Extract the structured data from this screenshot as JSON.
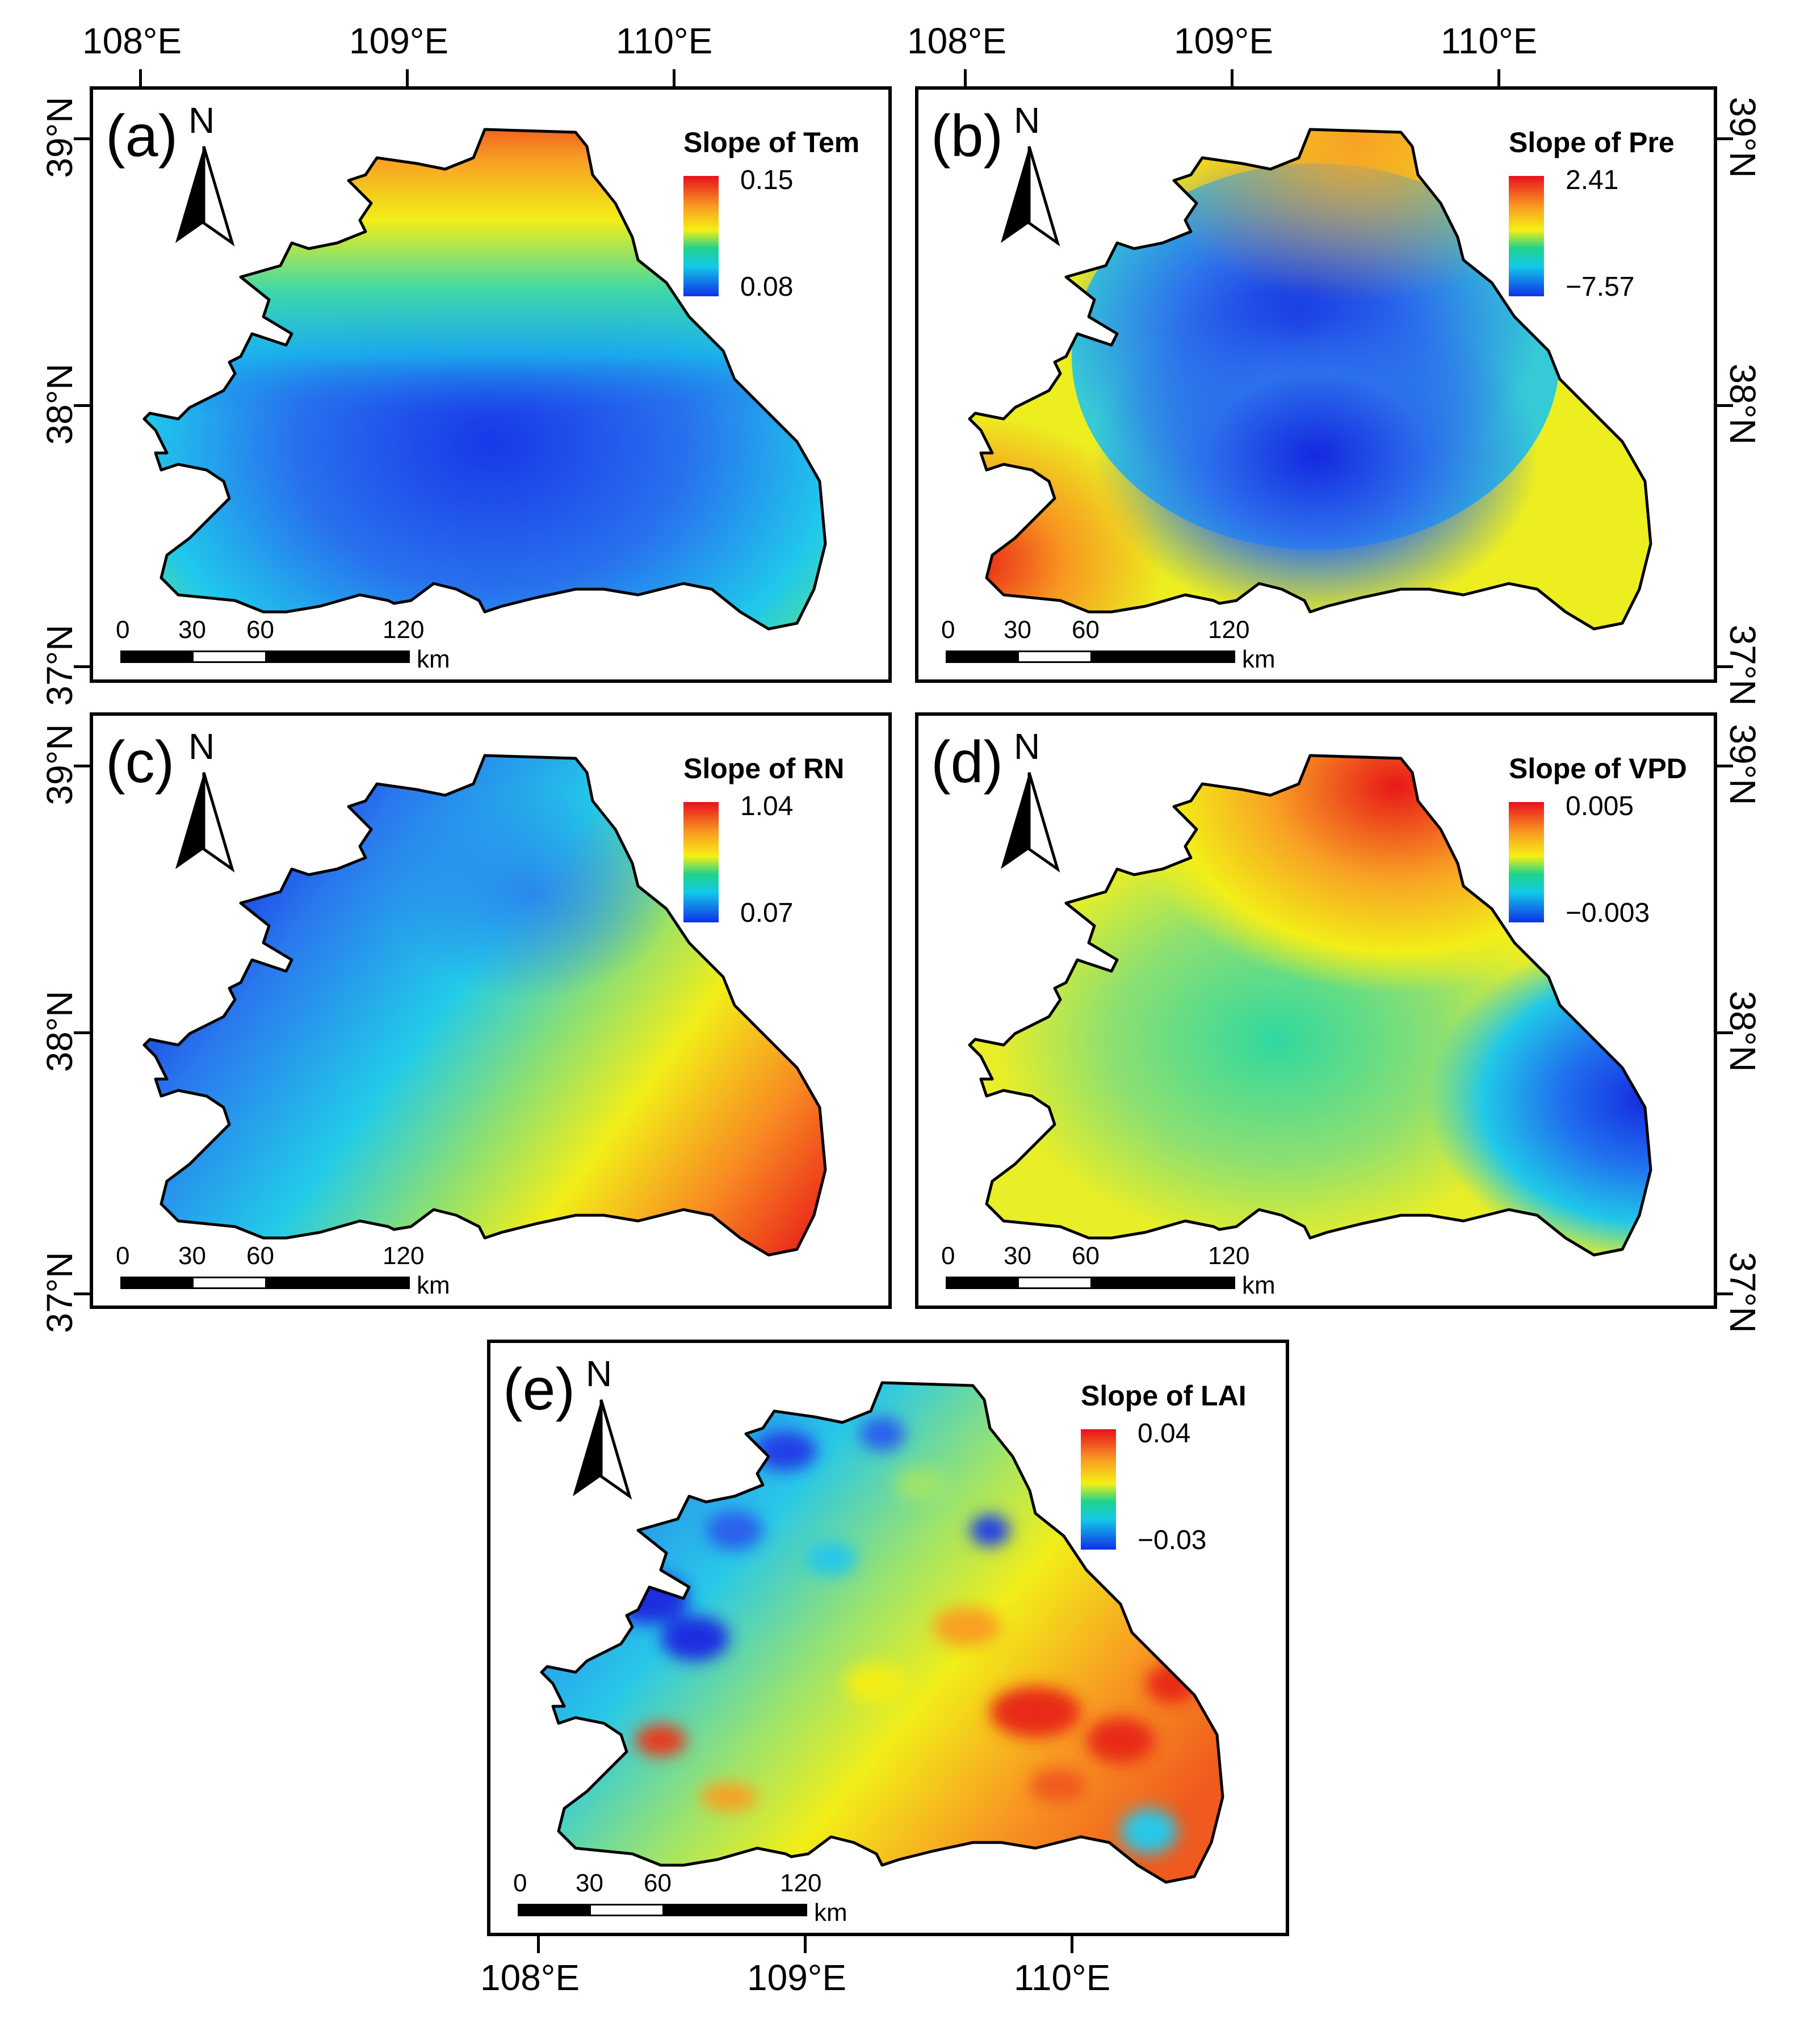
{
  "panels": [
    {
      "label": "(a)",
      "north": "N",
      "legend_title": "Slope of Tem",
      "legend_max": "0.15",
      "legend_min": "0.08",
      "pattern": "tem"
    },
    {
      "label": "(b)",
      "north": "N",
      "legend_title": "Slope of Pre",
      "legend_max": "2.41",
      "legend_min": "−7.57",
      "pattern": "pre"
    },
    {
      "label": "(c)",
      "north": "N",
      "legend_title": "Slope of RN",
      "legend_max": "1.04",
      "legend_min": "0.07",
      "pattern": "rn"
    },
    {
      "label": "(d)",
      "north": "N",
      "legend_title": "Slope of VPD",
      "legend_max": "0.005",
      "legend_min": "−0.003",
      "pattern": "vpd"
    },
    {
      "label": "(e)",
      "north": "N",
      "legend_title": "Slope of LAI",
      "legend_max": "0.04",
      "legend_min": "−0.03",
      "pattern": "lai"
    }
  ],
  "scalebar": {
    "ticks": [
      "0",
      "30",
      "60",
      "120"
    ],
    "unit": "km"
  },
  "axes": {
    "lon": [
      "108°E",
      "109°E",
      "110°E"
    ],
    "lat": [
      "39°N",
      "38°N",
      "37°N"
    ]
  },
  "colors": {
    "high": "#e8101b",
    "mid_high": "#f99a22",
    "mid": "#f5f015",
    "mid_low": "#20d38b",
    "low_mid": "#12c9e8",
    "low": "#1030e8"
  }
}
